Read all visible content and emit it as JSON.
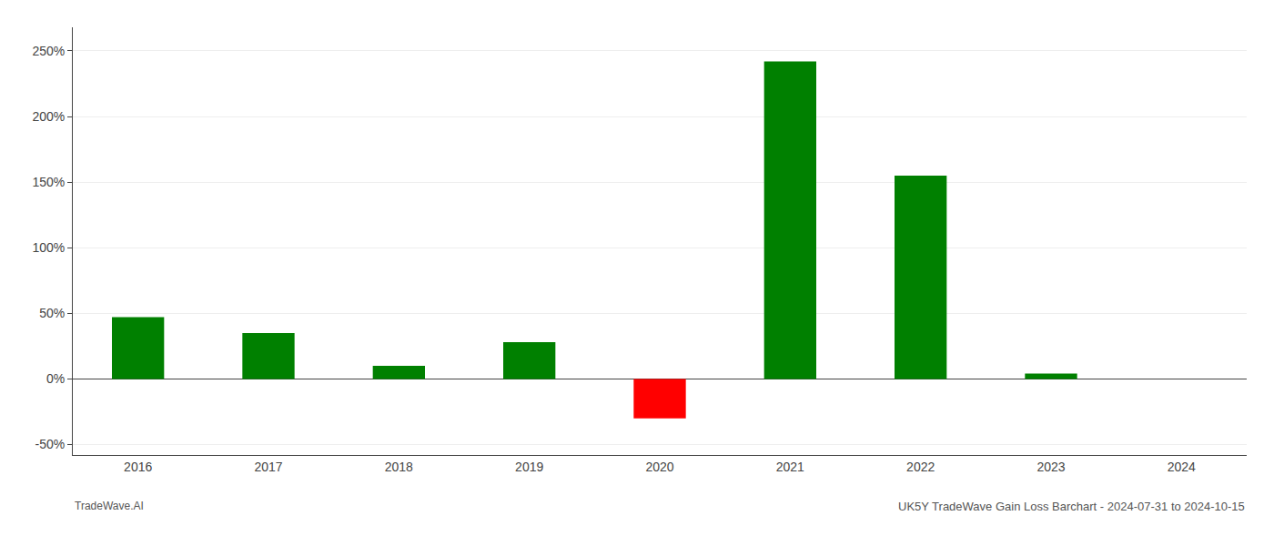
{
  "chart_data": {
    "type": "bar",
    "title": "UK5Y TradeWave Gain Loss Barchart - 2024-07-31 to 2024-10-15",
    "annotations": [
      "TradeWave.AI"
    ],
    "categories": [
      "2016",
      "2017",
      "2018",
      "2019",
      "2020",
      "2021",
      "2022",
      "2023",
      "2024"
    ],
    "values": [
      0.47,
      0.35,
      0.1,
      0.28,
      -0.3,
      2.42,
      1.55,
      0.04,
      0.0
    ],
    "colors": [
      "#008000",
      "#008000",
      "#008000",
      "#008000",
      "#ff0000",
      "#008000",
      "#008000",
      "#008000",
      "#008000"
    ],
    "ylim": [
      -0.58,
      2.68
    ],
    "yticks": [
      {
        "value": -0.5,
        "label": "-50%"
      },
      {
        "value": 0.0,
        "label": "0%"
      },
      {
        "value": 0.5,
        "label": "50%"
      },
      {
        "value": 1.0,
        "label": "100%"
      },
      {
        "value": 1.5,
        "label": "150%"
      },
      {
        "value": 2.0,
        "label": "200%"
      },
      {
        "value": 2.5,
        "label": "250%"
      }
    ],
    "grid": true
  }
}
